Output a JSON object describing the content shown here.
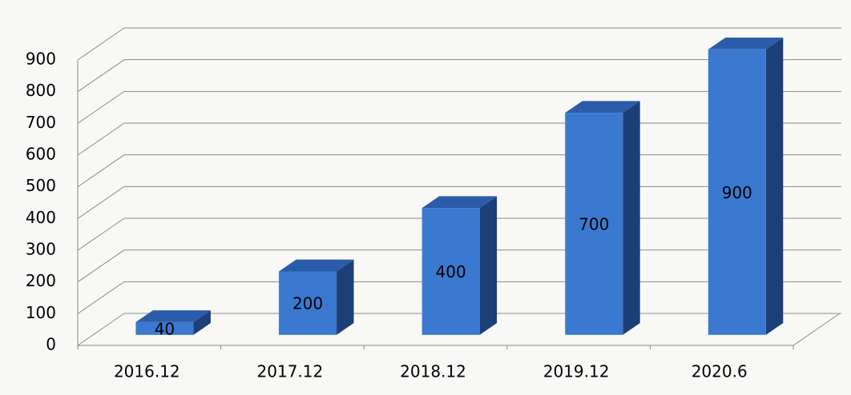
{
  "chart_data": {
    "type": "bar3d",
    "categories": [
      "2016.12",
      "2017.12",
      "2018.12",
      "2019.12",
      "2020.6"
    ],
    "values": [
      40,
      200,
      400,
      700,
      900
    ],
    "color": "#3b79d1",
    "side_color": "#1d3f77",
    "top_color": "#2b5caa",
    "ylim": [
      0,
      900
    ],
    "yticks": [
      0,
      100,
      200,
      300,
      400,
      500,
      600,
      700,
      800,
      900
    ],
    "grid": true,
    "data_labels": true
  }
}
